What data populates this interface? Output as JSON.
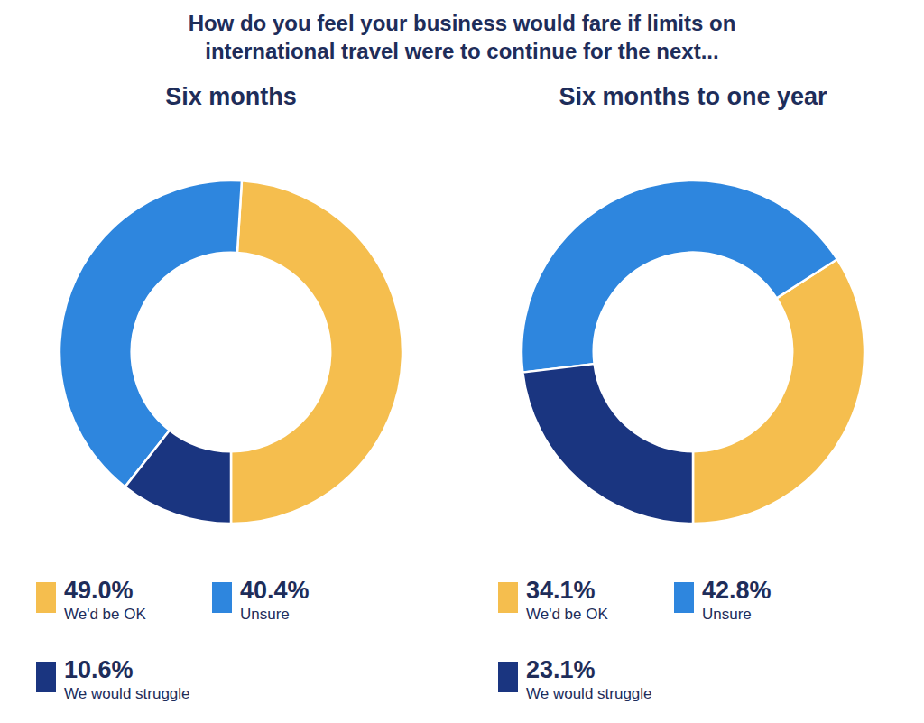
{
  "chart_data": [
    {
      "type": "pie",
      "title": "How do you feel your business would fare if limits on\ninternational travel were to continue for the next...",
      "subtitle": "Six months",
      "categories": [
        "We'd be OK",
        "Unsure",
        "We would struggle"
      ],
      "values": [
        49.0,
        40.4,
        10.6
      ],
      "value_labels": [
        "49.0%",
        "40.4%",
        "10.6%"
      ],
      "colors": [
        "#F5BE4E",
        "#2E86DE",
        "#1A3580"
      ],
      "legend": "bottom"
    },
    {
      "type": "pie",
      "subtitle": "Six months to one year",
      "categories": [
        "We'd be OK",
        "Unsure",
        "We would struggle"
      ],
      "values": [
        34.1,
        42.8,
        23.1
      ],
      "value_labels": [
        "34.1%",
        "42.8%",
        "23.1%"
      ],
      "colors": [
        "#F5BE4E",
        "#2E86DE",
        "#1A3580"
      ],
      "legend": "bottom"
    }
  ]
}
